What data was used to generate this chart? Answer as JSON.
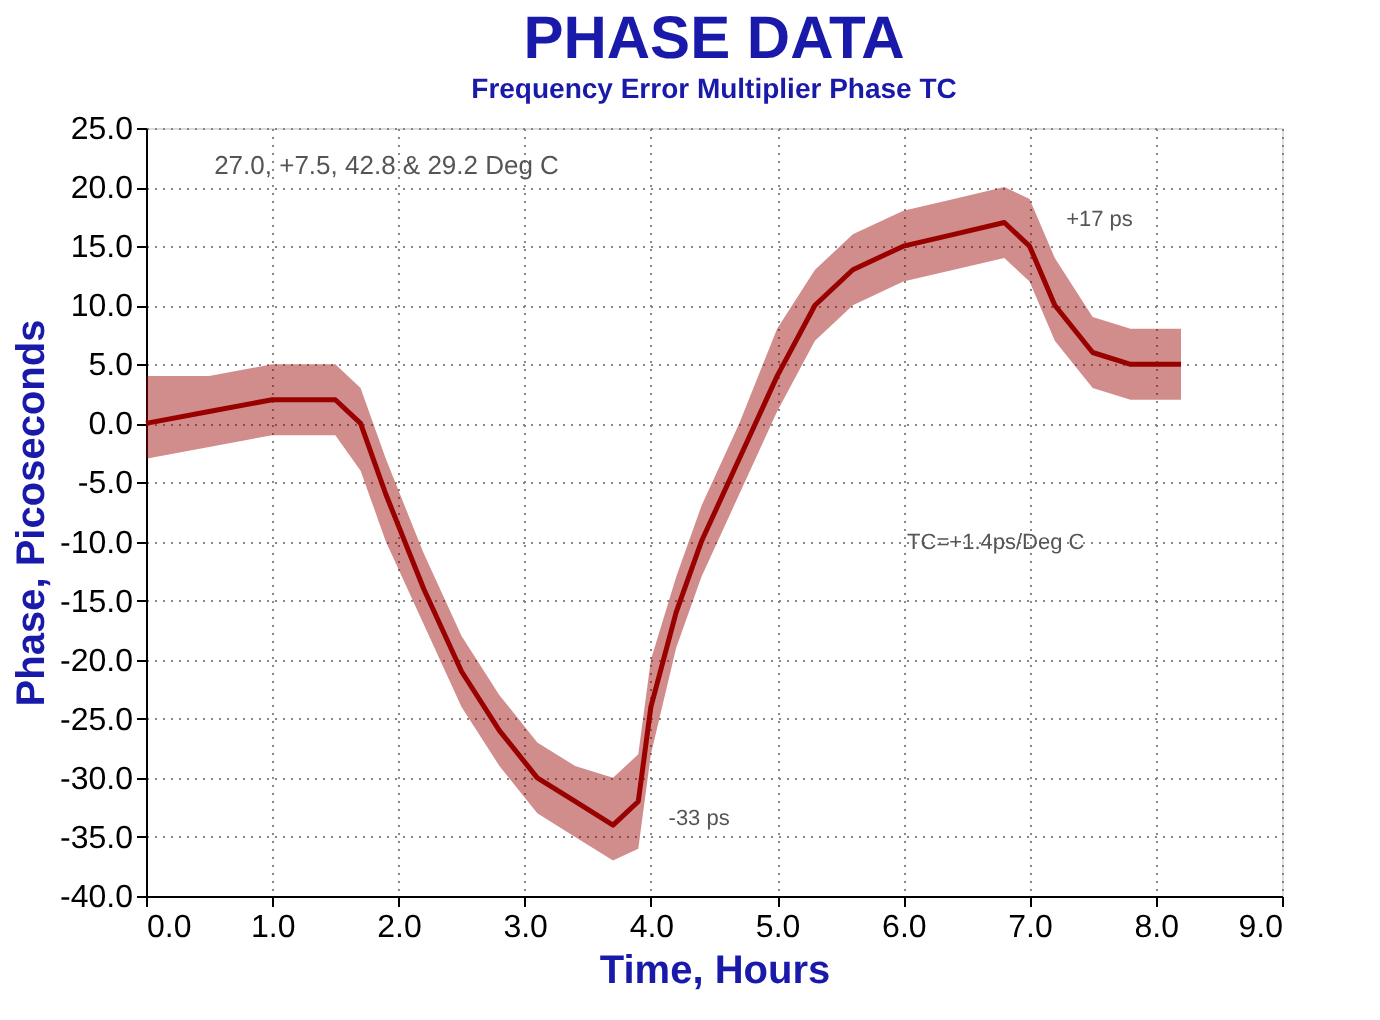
{
  "chart_data": {
    "type": "line",
    "title": "PHASE DATA",
    "subtitle": "Frequency Error Multiplier Phase TC",
    "xlabel": "Time, Hours",
    "ylabel": "Phase, Picoseconds",
    "x": [
      0.0,
      0.5,
      1.0,
      1.5,
      1.7,
      1.9,
      2.2,
      2.5,
      2.8,
      3.1,
      3.4,
      3.7,
      3.9,
      4.0,
      4.2,
      4.4,
      4.7,
      5.0,
      5.3,
      5.6,
      6.0,
      6.4,
      6.8,
      7.0,
      7.2,
      7.5,
      7.8,
      8.2
    ],
    "series": [
      {
        "color": "#990000",
        "values": [
          0,
          1,
          2,
          2,
          0,
          -6,
          -14,
          -21,
          -26,
          -30,
          -32,
          -34,
          -32,
          -24,
          -16,
          -10,
          -3,
          4,
          10,
          13,
          15,
          16,
          17,
          15,
          10,
          6,
          5,
          5
        ],
        "lower": [
          -3,
          -2,
          -1,
          -1,
          -4,
          -10,
          -17,
          -24,
          -29,
          -33,
          -35,
          -37,
          -36,
          -28,
          -19,
          -13,
          -6,
          1,
          7,
          10,
          12,
          13,
          14,
          12,
          7,
          3,
          2,
          2
        ],
        "upper": [
          4,
          4,
          5,
          5,
          3,
          -3,
          -11,
          -18,
          -23,
          -27,
          -29,
          -30,
          -28,
          -20,
          -13,
          -7,
          0,
          8,
          13,
          16,
          18,
          19,
          20,
          19,
          14,
          9,
          8,
          8
        ]
      }
    ],
    "xlim": [
      0,
      9
    ],
    "xticks": [
      {
        "value": 0,
        "label": "0.0"
      },
      {
        "value": 1,
        "label": "1.0"
      },
      {
        "value": 2,
        "label": "2.0"
      },
      {
        "value": 3,
        "label": "3.0"
      },
      {
        "value": 4,
        "label": "4.0"
      },
      {
        "value": 5,
        "label": "5.0"
      },
      {
        "value": 6,
        "label": "6.0"
      },
      {
        "value": 7,
        "label": "7.0"
      },
      {
        "value": 8,
        "label": "8.0"
      },
      {
        "value": 9,
        "label": "9.0"
      }
    ],
    "ylim": [
      -40,
      25
    ],
    "yticks": [
      {
        "value": -40,
        "label": "-40.0"
      },
      {
        "value": -35,
        "label": "-35.0"
      },
      {
        "value": -30,
        "label": "-30.0"
      },
      {
        "value": -25,
        "label": "-25.0"
      },
      {
        "value": -20,
        "label": "-20.0"
      },
      {
        "value": -15,
        "label": "-15.0"
      },
      {
        "value": -10,
        "label": "-10.0"
      },
      {
        "value": -5,
        "label": "-5.0"
      },
      {
        "value": 0,
        "label": "0.0"
      },
      {
        "value": 5,
        "label": "5.0"
      },
      {
        "value": 10,
        "label": "10.0"
      },
      {
        "value": 15,
        "label": "15.0"
      },
      {
        "value": 20,
        "label": "20.0"
      },
      {
        "value": 25,
        "label": "25.0"
      }
    ],
    "grid": true,
    "marker": "none",
    "line_style": "solid",
    "annotations": [
      "27.0, +7.5, 42.8 & 29.2 Deg C",
      "TC=+1.4ps/Deg C",
      "+17 ps",
      "-33 ps"
    ]
  }
}
